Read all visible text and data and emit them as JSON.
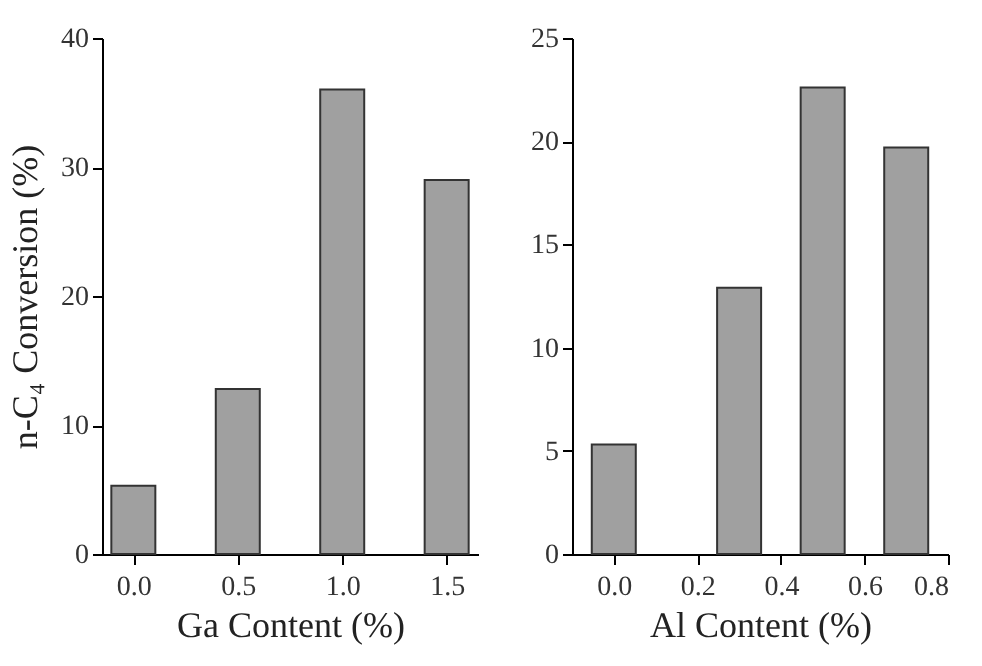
{
  "chart_data": [
    {
      "type": "bar",
      "xlabel": "Ga Content (%)",
      "ylabel": "n-C₄ Conversion (%)",
      "x": [
        0,
        0.5,
        1.0,
        1.5
      ],
      "values": [
        5.3,
        12.8,
        36.0,
        29.0
      ],
      "color": "#a0a0a0",
      "xlim": [
        -0.15,
        1.65
      ],
      "xticks": [
        {
          "value": 0,
          "label": "0.0"
        },
        {
          "value": 0.5,
          "label": "0.5"
        },
        {
          "value": 1,
          "label": "1.0"
        },
        {
          "value": 1.5,
          "label": "1.5"
        }
      ],
      "ylim": [
        0,
        40
      ],
      "yticks": [
        0,
        10,
        20,
        30,
        40
      ]
    },
    {
      "type": "bar",
      "xlabel": "Al Content (%)",
      "x": [
        0,
        0.3,
        0.5,
        0.7
      ],
      "values": [
        5.3,
        12.9,
        22.6,
        19.7
      ],
      "color": "#a0a0a0",
      "xlim": [
        -0.1,
        0.8
      ],
      "xticks": [
        {
          "value": 0,
          "label": "0.0"
        },
        {
          "value": 0.2,
          "label": "0.2"
        },
        {
          "value": 0.4,
          "label": "0.4"
        },
        {
          "value": 0.6,
          "label": "0.6"
        },
        {
          "value": 0.8,
          "label": "0.8"
        }
      ],
      "ylim": [
        0,
        25
      ],
      "yticks": [
        0,
        5,
        10,
        15,
        20,
        25
      ]
    }
  ]
}
